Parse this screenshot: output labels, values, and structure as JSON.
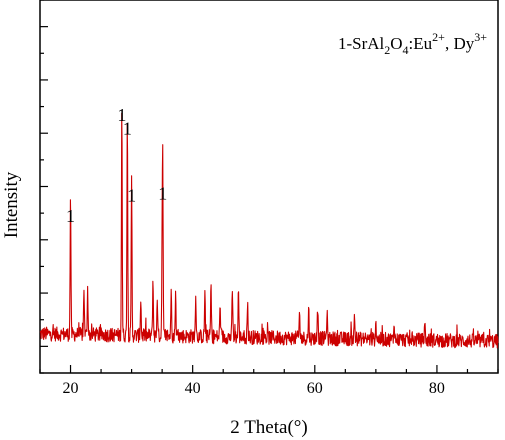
{
  "chart_data": {
    "type": "line",
    "xlabel": "2 Theta(°)",
    "ylabel": "Intensity",
    "xlim": [
      15,
      90
    ],
    "ylim": [
      0,
      100
    ],
    "x_ticks": [
      20,
      40,
      60,
      80
    ],
    "y_ticks_labeled": false,
    "grid": false,
    "line_color": "#cc0000",
    "legend": {
      "position": "top-right",
      "prefix": "1-SrAl",
      "sub1": "2",
      "mid": "O",
      "sub2": "4",
      "mid2": ":Eu",
      "sup1": "2+",
      "mid3": ", Dy",
      "sup2": "3+"
    },
    "peak_labels": [
      {
        "x": 20.0,
        "y": 40.5,
        "text": "1"
      },
      {
        "x": 28.4,
        "y": 67.5,
        "text": "1"
      },
      {
        "x": 29.3,
        "y": 64.0,
        "text": "1"
      },
      {
        "x": 30.0,
        "y": 46.0,
        "text": "1"
      },
      {
        "x": 35.1,
        "y": 46.5,
        "text": "1"
      }
    ],
    "baseline": {
      "start": 10.5,
      "end": 8.5,
      "noise": 1.2
    },
    "peaks": [
      {
        "x": 20.0,
        "h": 38
      },
      {
        "x": 22.2,
        "h": 13
      },
      {
        "x": 22.8,
        "h": 13
      },
      {
        "x": 28.4,
        "h": 63
      },
      {
        "x": 29.3,
        "h": 60
      },
      {
        "x": 30.0,
        "h": 43
      },
      {
        "x": 31.5,
        "h": 10
      },
      {
        "x": 33.5,
        "h": 15
      },
      {
        "x": 34.2,
        "h": 11
      },
      {
        "x": 35.1,
        "h": 44
      },
      {
        "x": 35.0,
        "h": 22
      },
      {
        "x": 36.5,
        "h": 13
      },
      {
        "x": 37.2,
        "h": 12
      },
      {
        "x": 40.5,
        "h": 12
      },
      {
        "x": 42.0,
        "h": 12
      },
      {
        "x": 43.0,
        "h": 14
      },
      {
        "x": 44.5,
        "h": 9
      },
      {
        "x": 46.5,
        "h": 13
      },
      {
        "x": 47.5,
        "h": 13
      },
      {
        "x": 49.0,
        "h": 9
      },
      {
        "x": 57.5,
        "h": 7
      },
      {
        "x": 59.0,
        "h": 8
      },
      {
        "x": 60.5,
        "h": 8
      },
      {
        "x": 62.0,
        "h": 7
      },
      {
        "x": 66.5,
        "h": 6
      },
      {
        "x": 70.0,
        "h": 5
      },
      {
        "x": 73.0,
        "h": 5
      },
      {
        "x": 78.0,
        "h": 5
      }
    ]
  }
}
